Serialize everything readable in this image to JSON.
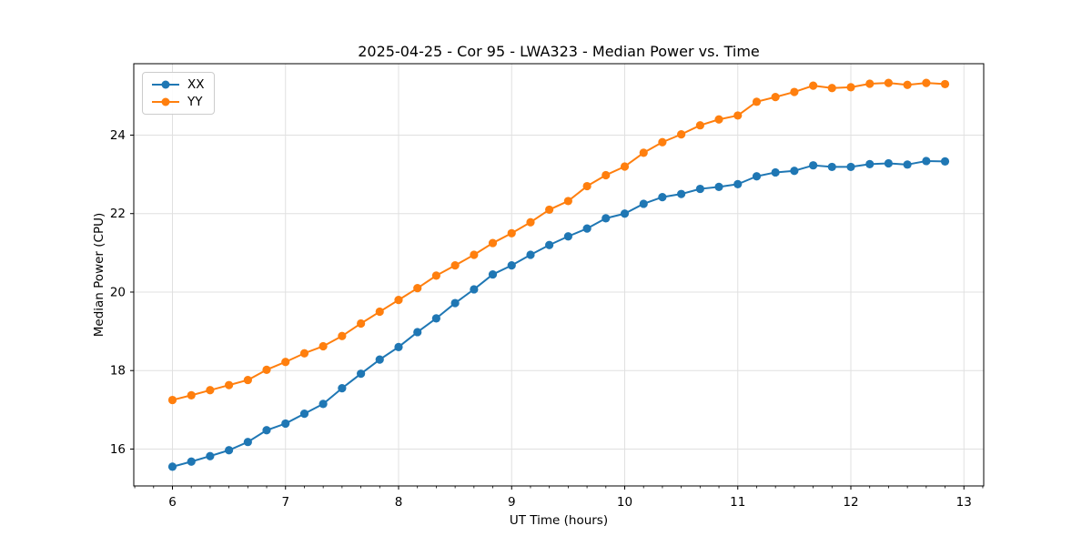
{
  "figure": {
    "title": "2025-04-25 - Cor 95 - LWA323 - Median Power vs. Time",
    "xlabel": "UT Time (hours)",
    "ylabel": "Median Power (CPU)"
  },
  "legend": {
    "position": "upper left",
    "entries": [
      {
        "label": "XX",
        "color": "#1f77b4"
      },
      {
        "label": "YY",
        "color": "#ff7f0e"
      }
    ]
  },
  "colors": {
    "series_xx": "#1f77b4",
    "series_yy": "#ff7f0e",
    "grid": "#e0e0e0",
    "spine": "#000000",
    "background": "#ffffff"
  },
  "chart_data": {
    "type": "line",
    "title": "2025-04-25 - Cor 95 - LWA323 - Median Power vs. Time",
    "xlabel": "UT Time (hours)",
    "ylabel": "Median Power (CPU)",
    "grid": true,
    "legend_position": "upper left",
    "marker": "circle",
    "xlim": [
      5.658,
      13.175
    ],
    "ylim": [
      15.06,
      25.82
    ],
    "x_ticks": [
      6,
      7,
      8,
      9,
      10,
      11,
      12,
      13
    ],
    "x_minor_divisions": 6,
    "y_ticks": [
      16,
      18,
      20,
      22,
      24
    ],
    "x": [
      6.0,
      6.167,
      6.333,
      6.5,
      6.667,
      6.833,
      7.0,
      7.167,
      7.333,
      7.5,
      7.667,
      7.833,
      8.0,
      8.167,
      8.333,
      8.5,
      8.667,
      8.833,
      9.0,
      9.167,
      9.333,
      9.5,
      9.667,
      9.833,
      10.0,
      10.167,
      10.333,
      10.5,
      10.667,
      10.833,
      11.0,
      11.167,
      11.333,
      11.5,
      11.667,
      11.833,
      12.0,
      12.167,
      12.333,
      12.5,
      12.667,
      12.833
    ],
    "series": [
      {
        "name": "XX",
        "color": "#1f77b4",
        "values": [
          15.55,
          15.68,
          15.82,
          15.97,
          16.18,
          16.48,
          16.65,
          16.9,
          17.15,
          17.55,
          17.92,
          18.28,
          18.6,
          18.98,
          19.33,
          19.72,
          20.07,
          20.45,
          20.68,
          20.95,
          21.2,
          21.42,
          21.62,
          21.88,
          22.0,
          22.25,
          22.42,
          22.5,
          22.63,
          22.68,
          22.75,
          22.95,
          23.05,
          23.09,
          23.23,
          23.19,
          23.19,
          23.26,
          23.28,
          23.25,
          23.34,
          23.33
        ]
      },
      {
        "name": "YY",
        "color": "#ff7f0e",
        "values": [
          17.25,
          17.37,
          17.5,
          17.63,
          17.76,
          18.02,
          18.22,
          18.44,
          18.62,
          18.88,
          19.2,
          19.5,
          19.8,
          20.1,
          20.42,
          20.68,
          20.95,
          21.25,
          21.5,
          21.78,
          22.1,
          22.32,
          22.7,
          22.98,
          23.2,
          23.55,
          23.82,
          24.02,
          24.25,
          24.4,
          24.5,
          24.85,
          24.97,
          25.1,
          25.26,
          25.2,
          25.22,
          25.31,
          25.33,
          25.28,
          25.33,
          25.3
        ]
      }
    ]
  }
}
